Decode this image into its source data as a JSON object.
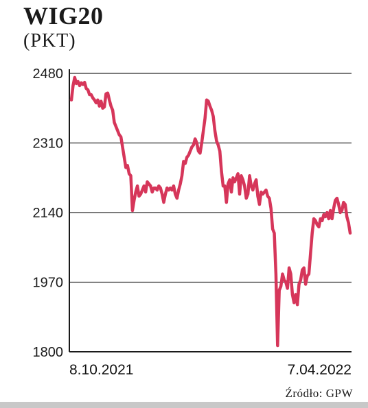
{
  "chart_data": {
    "type": "line",
    "title": "WIG20",
    "subtitle": "(PKT)",
    "source": "Źródło: GPW",
    "ylim": [
      1800,
      2480
    ],
    "yticks": [
      2480,
      2310,
      2140,
      1970,
      1800
    ],
    "xtick_labels": [
      "8.10.2021",
      "7.04.2022"
    ],
    "grid": true,
    "line_color": "#d6365a",
    "series": [
      {
        "values": [
          2415,
          2450,
          2470,
          2455,
          2460,
          2450,
          2457,
          2453,
          2458,
          2443,
          2440,
          2428,
          2428,
          2420,
          2415,
          2408,
          2415,
          2400,
          2412,
          2395,
          2398,
          2430,
          2432,
          2415,
          2400,
          2390,
          2360,
          2350,
          2340,
          2330,
          2325,
          2300,
          2275,
          2250,
          2255,
          2235,
          2230,
          2145,
          2170,
          2190,
          2205,
          2180,
          2185,
          2195,
          2205,
          2190,
          2215,
          2210,
          2205,
          2190,
          2200,
          2200,
          2195,
          2205,
          2200,
          2185,
          2165,
          2185,
          2200,
          2195,
          2200,
          2195,
          2205,
          2185,
          2175,
          2195,
          2210,
          2230,
          2265,
          2260,
          2275,
          2280,
          2290,
          2300,
          2305,
          2320,
          2310,
          2290,
          2285,
          2310,
          2340,
          2370,
          2415,
          2412,
          2400,
          2390,
          2375,
          2340,
          2315,
          2305,
          2290,
          2240,
          2205,
          2205,
          2165,
          2210,
          2220,
          2190,
          2225,
          2215,
          2225,
          2235,
          2185,
          2230,
          2220,
          2205,
          2175,
          2185,
          2230,
          2205,
          2195,
          2210,
          2220,
          2180,
          2160,
          2190,
          2185,
          2190,
          2195,
          2180,
          2175,
          2150,
          2100,
          2090,
          1990,
          1815,
          1950,
          1960,
          1990,
          1975,
          1970,
          1955,
          2005,
          1990,
          1940,
          1920,
          1940,
          1915,
          1965,
          1975,
          2000,
          2005,
          1965,
          1985,
          1990,
          2040,
          2090,
          2125,
          2120,
          2110,
          2105,
          2125,
          2120,
          2135,
          2130,
          2140,
          2125,
          2145,
          2125,
          2150,
          2170,
          2175,
          2160,
          2140,
          2145,
          2165,
          2160,
          2130,
          2115,
          2090
        ]
      }
    ]
  }
}
